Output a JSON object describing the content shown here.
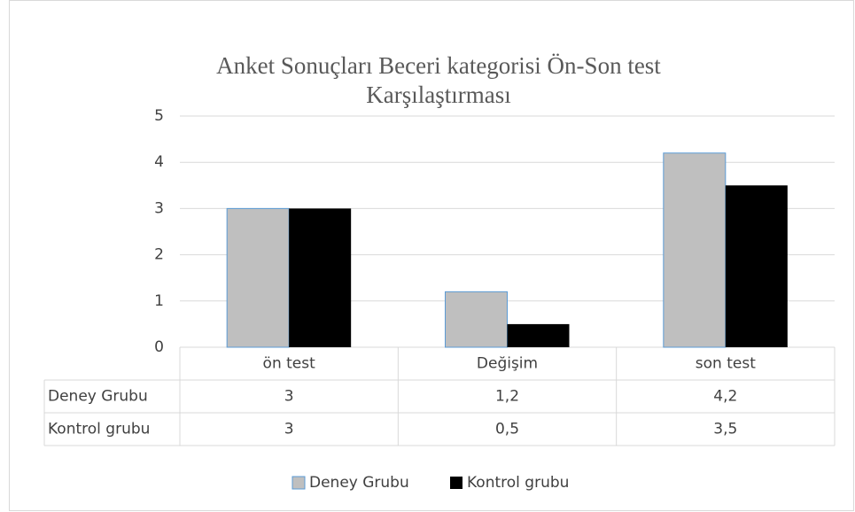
{
  "chart_data": {
    "type": "bar",
    "title": "Anket Sonuçları Beceri kategorisi Ön-Son test Karşılaştırması",
    "categories": [
      "ön test",
      "Değişim",
      "son test"
    ],
    "series": [
      {
        "name": "Deney Grubu",
        "color": "#bfbfbf",
        "edge_color": "#5b9bd5",
        "values": [
          3,
          1.2,
          4.2
        ],
        "value_labels": [
          "3",
          "1,2",
          "4,2"
        ]
      },
      {
        "name": "Kontrol grubu",
        "color": "#000000",
        "values": [
          3,
          0.5,
          3.5
        ],
        "value_labels": [
          "3",
          "0,5",
          "3,5"
        ]
      }
    ],
    "ylim": [
      0,
      5
    ],
    "yticks": [
      0,
      1,
      2,
      3,
      4,
      5
    ],
    "grid": true,
    "legend": "bottom",
    "data_table": true
  }
}
